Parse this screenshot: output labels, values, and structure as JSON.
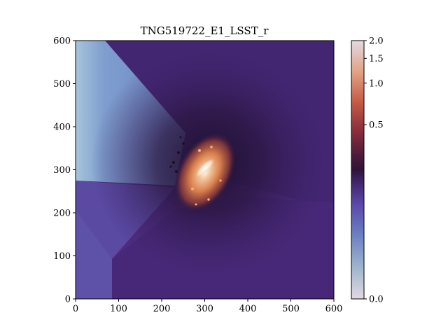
{
  "chart_data": {
    "type": "heatmap",
    "title": "TNG519722_E1_LSST_r",
    "xlabel": "",
    "ylabel": "",
    "xlim": [
      0,
      600
    ],
    "ylim": [
      0,
      600
    ],
    "x_ticks": [
      {
        "value": 0,
        "label": "0"
      },
      {
        "value": 100,
        "label": "100"
      },
      {
        "value": 200,
        "label": "200"
      },
      {
        "value": 300,
        "label": "300"
      },
      {
        "value": 400,
        "label": "400"
      },
      {
        "value": 500,
        "label": "500"
      },
      {
        "value": 600,
        "label": "600"
      }
    ],
    "y_ticks": [
      {
        "value": 0,
        "label": "0"
      },
      {
        "value": 100,
        "label": "100"
      },
      {
        "value": 200,
        "label": "200"
      },
      {
        "value": 300,
        "label": "300"
      },
      {
        "value": 400,
        "label": "400"
      },
      {
        "value": 500,
        "label": "500"
      },
      {
        "value": 600,
        "label": "600"
      }
    ],
    "colormap": "twilight",
    "colorbar": {
      "ticks": [
        {
          "value": 0.0,
          "label": "0.0"
        },
        {
          "value": 0.5,
          "label": "0.5"
        },
        {
          "value": 1.0,
          "label": "1.0"
        },
        {
          "value": 1.5,
          "label": "1.5"
        },
        {
          "value": 2.0,
          "label": "2.0"
        }
      ],
      "range": [
        0.0,
        2.0
      ]
    },
    "features": {
      "galaxy_center": [
        295,
        300
      ],
      "bright_core_angle_deg": 40
    },
    "grid": false,
    "legend": "none"
  },
  "colors": {
    "background_purple": "#4a2a7a",
    "dark_halo": "#2a1640",
    "blue_wedge": "#6a88c0",
    "galaxy_orange": "#e08a50",
    "core_white": "#fff4e8"
  }
}
